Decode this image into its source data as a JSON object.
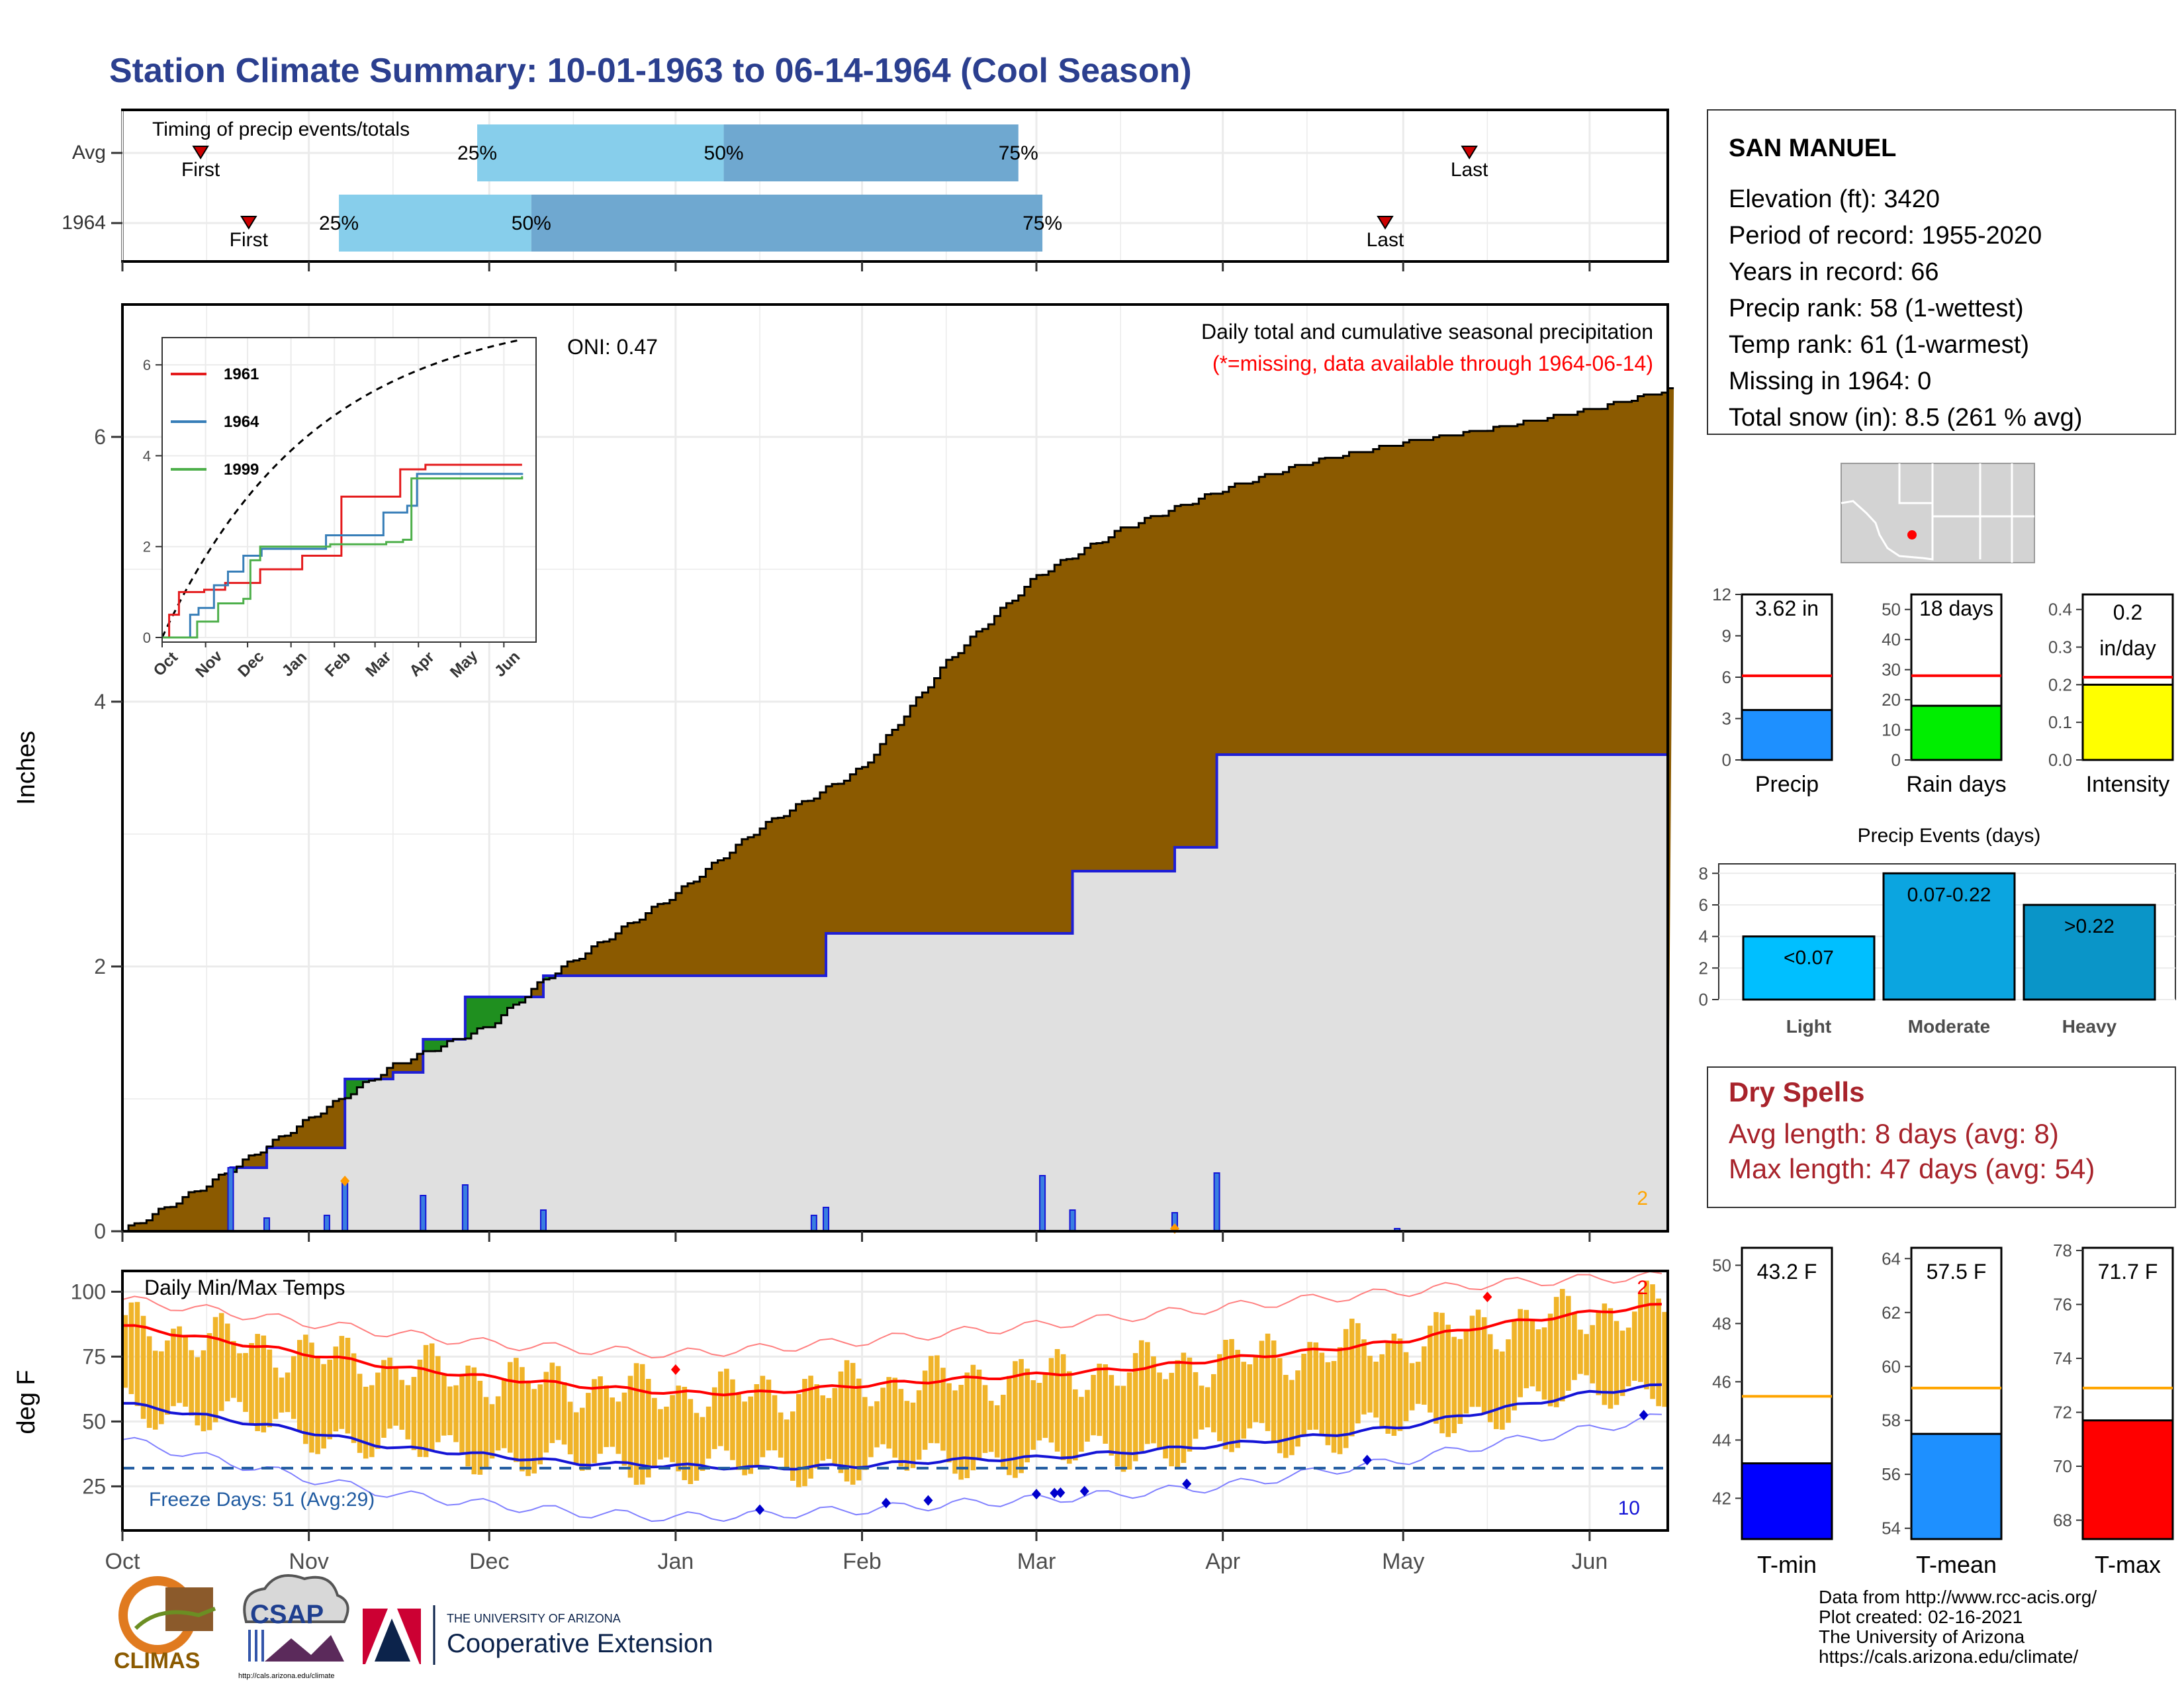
{
  "title": "Station Climate Summary: 10-01-1963 to 06-14-1964 (Cool Season)",
  "colors": {
    "title": "#2b3f8f",
    "precip_fill": "#8b5a00",
    "avg_fill": "#e0e0e0",
    "avg_line": "#1f1fd6",
    "above_fill": "#1f8f1f",
    "light_blue": "#87ceeb",
    "mid_blue": "#6fa8d0",
    "temp_bar": "#f0b429",
    "tmax_line": "#ff0000",
    "tmin_line": "#1414d6",
    "freeze": "#1f5aa0",
    "dry": "#a8232b"
  },
  "timing": {
    "title": "Timing of precip events/totals",
    "rows": [
      {
        "label": "Avg",
        "first_label": "First",
        "last_label": "Last",
        "first": "1963-10-14",
        "last": "1964-05-12",
        "p25": "1963-11-29",
        "p50": "1964-01-09",
        "p75": "1964-02-27",
        "p25_label": "25%",
        "p50_label": "50%",
        "p75_label": "75%"
      },
      {
        "label": "1964",
        "first_label": "First",
        "last_label": "Last",
        "first": "1963-10-22",
        "last": "1964-04-28",
        "p25": "1963-11-06",
        "p50": "1963-12-08",
        "p75": "1964-03-02",
        "p25_label": "25%",
        "p50_label": "50%",
        "p75_label": "75%"
      }
    ]
  },
  "precip": {
    "ylabel": "Inches",
    "yticks": [
      "0",
      "2",
      "4",
      "6"
    ],
    "header": "Daily total and cumulative seasonal precipitation",
    "missing_note": "(*=missing, data available through 1964-06-14)",
    "oni": "ONI: 0.47",
    "count_label": "2"
  },
  "inset": {
    "yticks": [
      "0",
      "2",
      "4",
      "6"
    ],
    "months": [
      "Oct",
      "Nov",
      "Dec",
      "Jan",
      "Feb",
      "Mar",
      "Apr",
      "May",
      "Jun"
    ],
    "legend": [
      {
        "name": "1961",
        "color": "#e41a1c"
      },
      {
        "name": "1964",
        "color": "#377eb8"
      },
      {
        "name": "1999",
        "color": "#4daf4a"
      }
    ]
  },
  "temps": {
    "ylabel": "deg F",
    "title": "Daily Min/Max Temps",
    "yticks": [
      "25",
      "50",
      "75",
      "100"
    ],
    "freeze_label": "Freeze Days: 51 (Avg:29)",
    "count_hi": "2",
    "count_lo": "10"
  },
  "x_months": [
    "Oct",
    "Nov",
    "Dec",
    "Jan",
    "Feb",
    "Mar",
    "Apr",
    "May",
    "Jun"
  ],
  "station": {
    "name": "SAN MANUEL",
    "lines": [
      "Elevation (ft): 3420",
      "Period of record: 1955-2020",
      "Years in record: 66",
      "Precip rank: 58 (1-wettest)",
      "Temp rank: 61 (1-warmest)",
      "Missing in 1964: 0",
      "Total snow (in): 8.5 (261 % avg)"
    ]
  },
  "mini_precip": [
    {
      "label": "Precip",
      "value_label": "3.62 in",
      "value": 3.62,
      "avg": 6.1,
      "ymax": 12,
      "ticks": [
        "0",
        "3",
        "6",
        "9",
        "12"
      ],
      "color": "#1e90ff"
    },
    {
      "label": "Rain days",
      "value_label": "18 days",
      "value": 18,
      "avg": 28,
      "ymax": 55,
      "ticks": [
        "0",
        "10",
        "20",
        "30",
        "40",
        "50"
      ],
      "color": "#00ee00"
    },
    {
      "label": "Intensity",
      "value_label": "0.2 in/day",
      "value_line1": "0.2",
      "value_line2": "in/day",
      "value": 0.2,
      "avg": 0.22,
      "ymax": 0.44,
      "ticks": [
        "0.0",
        "0.1",
        "0.2",
        "0.3",
        "0.4"
      ],
      "color": "#ffff00"
    }
  ],
  "events": {
    "title": "Precip Events (days)",
    "ticks": [
      "0",
      "2",
      "4",
      "6",
      "8"
    ],
    "categories": [
      "Light",
      "Moderate",
      "Heavy"
    ],
    "values": [
      4,
      8,
      6
    ],
    "value_labels": [
      "<0.07",
      "0.07-0.22",
      ">0.22"
    ],
    "colors": [
      "#00bfff",
      "#0ba5e0",
      "#0a95c8"
    ]
  },
  "dry_spells": {
    "title": "Dry Spells",
    "lines": [
      "Avg length: 8 days (avg: 8)",
      "Max length: 47 days (avg: 54)"
    ]
  },
  "mini_temps": [
    {
      "label": "T-min",
      "value_label": "43.2 F",
      "value": 43.2,
      "avg": 45.5,
      "ymin": 40.6,
      "ymax": 50.6,
      "ticks": [
        "42",
        "44",
        "46",
        "48",
        "50"
      ],
      "color": "#0000ff"
    },
    {
      "label": "T-mean",
      "value_label": "57.5 F",
      "value": 57.5,
      "avg": 59.2,
      "ymin": 53.6,
      "ymax": 64.4,
      "ticks": [
        "54",
        "56",
        "58",
        "60",
        "62",
        "64"
      ],
      "color": "#1e90ff"
    },
    {
      "label": "T-max",
      "value_label": "71.7 F",
      "value": 71.7,
      "avg": 72.9,
      "ymin": 67.3,
      "ymax": 78.1,
      "ticks": [
        "68",
        "70",
        "72",
        "74",
        "76",
        "78"
      ],
      "color": "#ff0000"
    }
  ],
  "logos": {
    "climas": "CLIMAS",
    "csap": "CSAP",
    "csap_url": "http://cals.arizona.edu/climate",
    "ua_line1": "THE UNIVERSITY OF ARIZONA",
    "ua_line2": "Cooperative Extension",
    "ua_letter": "A"
  },
  "credits": [
    "Data from http://www.rcc-acis.org/",
    "Plot created: 02-16-2021",
    "The University of Arizona",
    "https://cals.arizona.edu/climate/"
  ],
  "chart_data": {
    "type": "area",
    "title": "Daily total and cumulative seasonal precipitation",
    "ylabel": "Inches",
    "ylim": [
      0,
      7
    ],
    "x_range": [
      "1963-10-01",
      "1964-06-14"
    ],
    "series": [
      {
        "name": "",
        "x": [
          "1963-10-01",
          "1963-10-15",
          "1963-11-01",
          "1963-11-15",
          "1963-12-01",
          "1963-12-10",
          "1964-01-01",
          "1964-01-15",
          "1964-02-01",
          "1964-02-15",
          "1964-03-01",
          "1964-03-15",
          "1964-04-01",
          "1964-04-15",
          "1964-05-01",
          "1964-05-15",
          "1964-06-01",
          "1964-06-14"
        ],
        "values": [
          0.0,
          0.35,
          0.85,
          1.25,
          1.55,
          1.9,
          2.55,
          3.05,
          3.5,
          4.3,
          4.95,
          5.3,
          5.6,
          5.8,
          5.95,
          6.05,
          6.2,
          6.35
        ]
      },
      {
        "name": "",
        "x": [
          "1963-10-01",
          "1963-10-19",
          "1963-10-25",
          "1963-11-07",
          "1963-11-15",
          "1963-11-20",
          "1963-11-27",
          "1963-12-10",
          "1964-01-24",
          "1964-01-26",
          "1964-03-02",
          "1964-03-07",
          "1964-03-24",
          "1964-03-31",
          "1964-04-30",
          "1964-06-14"
        ],
        "values": [
          0.0,
          0.48,
          0.63,
          1.15,
          1.2,
          1.45,
          1.77,
          1.93,
          1.93,
          2.25,
          2.25,
          2.72,
          2.9,
          3.6,
          3.6,
          3.62
        ]
      }
    ],
    "daily_bars": {
      "name": "",
      "x": [
        "1963-10-19",
        "1963-10-25",
        "1963-11-04",
        "1963-11-07",
        "1963-11-20",
        "1963-11-27",
        "1963-12-10",
        "1964-01-24",
        "1964-01-26",
        "1964-03-02",
        "1964-03-07",
        "1964-03-24",
        "1964-03-31",
        "1964-04-30"
      ],
      "values": [
        0.48,
        0.1,
        0.12,
        0.38,
        0.27,
        0.35,
        0.16,
        0.12,
        0.18,
        0.42,
        0.16,
        0.14,
        0.44,
        0.02
      ]
    },
    "temperature": {
      "title": "Daily Min/Max Temps",
      "ylabel": "deg F",
      "ylim": [
        8,
        108
      ],
      "x": [
        "1963-10-01",
        "1963-10-15",
        "1963-11-01",
        "1963-11-15",
        "1963-12-01",
        "1963-12-15",
        "1964-01-01",
        "1964-01-15",
        "1964-02-01",
        "1964-02-15",
        "1964-03-01",
        "1964-03-15",
        "1964-04-01",
        "1964-04-15",
        "1964-05-01",
        "1964-05-15",
        "1964-06-01",
        "1964-06-14"
      ],
      "avg_max": [
        87,
        82,
        76,
        71,
        67,
        64,
        61,
        61,
        64,
        66,
        68,
        70,
        74,
        77,
        81,
        87,
        92,
        95
      ],
      "avg_min": [
        57,
        52,
        46,
        40,
        37,
        34,
        33,
        32,
        33,
        35,
        36,
        38,
        41,
        44,
        48,
        54,
        61,
        64
      ],
      "record_max": [
        97,
        93,
        88,
        84,
        80,
        78,
        76,
        78,
        81,
        84,
        87,
        90,
        94,
        97,
        100,
        103,
        105,
        106
      ],
      "record_min": [
        43,
        36,
        28,
        22,
        18,
        15,
        13,
        14,
        16,
        18,
        20,
        22,
        25,
        30,
        35,
        41,
        47,
        52
      ],
      "freeze_line": 32
    }
  }
}
